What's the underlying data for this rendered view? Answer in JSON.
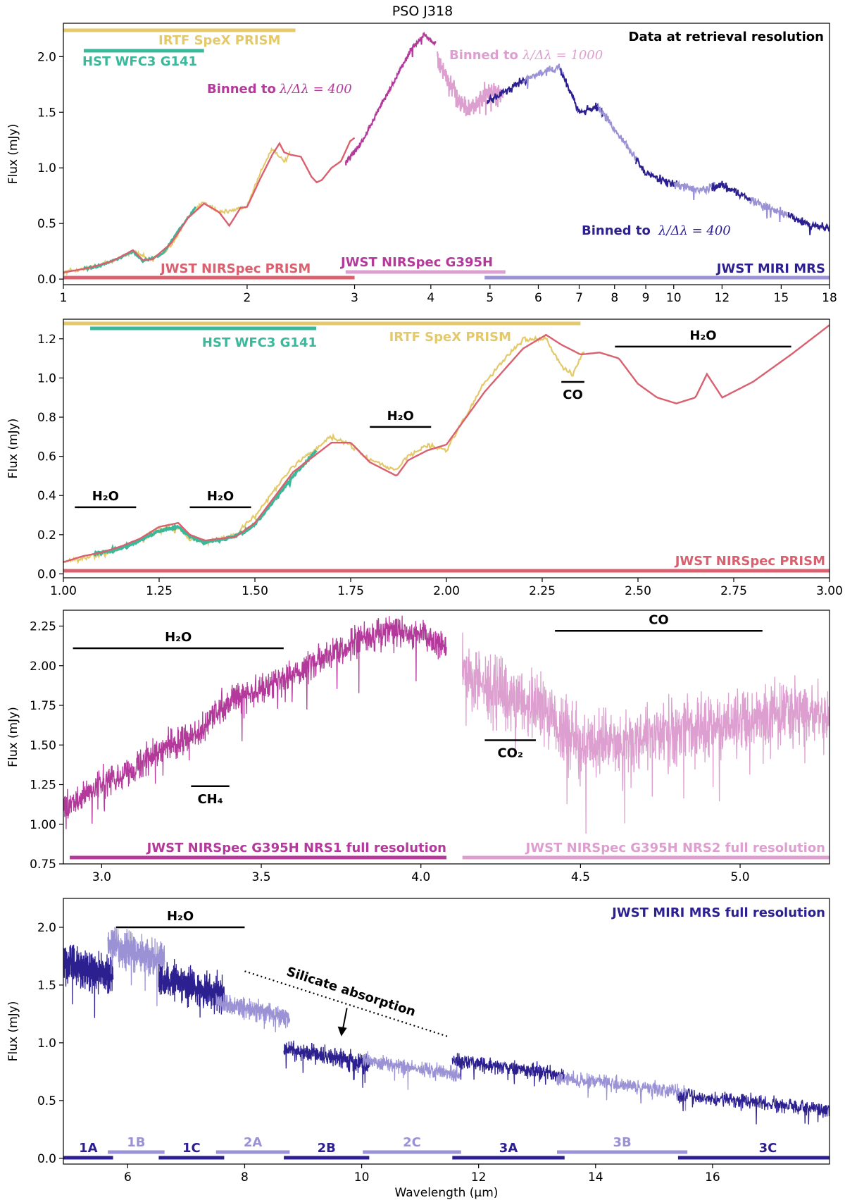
{
  "figure_title": "PSO J318",
  "colors": {
    "nirspec_prism": "#d9606e",
    "irtf_spex": "#e3c96a",
    "hst_wfc3": "#3bb89a",
    "g395h_nrs1": "#b3399a",
    "g395h_nrs2": "#dd9fcf",
    "miri_dark": "#2c1f8f",
    "miri_light": "#9a92d4",
    "black": "#000000"
  },
  "chart_data": [
    {
      "type": "line",
      "panel": "overview",
      "xscale": "log",
      "xlim": [
        1,
        18
      ],
      "ylim": [
        -0.05,
        2.3
      ],
      "ylabel": "Flux (mJy)",
      "xticks": [
        1,
        2,
        3,
        4,
        5,
        6,
        7,
        8,
        9,
        10,
        12,
        15,
        18
      ],
      "xtick_labels": [
        "1",
        "2",
        "3",
        "4",
        "5",
        "6",
        "7",
        "8",
        "9",
        "10",
        "12",
        "15",
        "18"
      ],
      "yticks": [
        0,
        0.5,
        1,
        1.5,
        2
      ],
      "ytick_labels": [
        "0.0",
        "0.5",
        "1.0",
        "1.5",
        "2.0"
      ],
      "legend_title": "Data at retrieval resolution",
      "series": [
        {
          "name": "JWST NIRSpec PRISM",
          "color_key": "nirspec_prism",
          "x": [
            1.0,
            1.05,
            1.1,
            1.2,
            1.25,
            1.3,
            1.35,
            1.4,
            1.5,
            1.6,
            1.7,
            1.8,
            1.87,
            1.95,
            2.0,
            2.1,
            2.2,
            2.26,
            2.3,
            2.35,
            2.45,
            2.55,
            2.6,
            2.65,
            2.75,
            2.85,
            2.95,
            3.0
          ],
          "y": [
            0.06,
            0.08,
            0.1,
            0.16,
            0.21,
            0.26,
            0.17,
            0.18,
            0.32,
            0.55,
            0.68,
            0.6,
            0.48,
            0.64,
            0.65,
            0.9,
            1.12,
            1.22,
            1.14,
            1.12,
            1.1,
            0.92,
            0.87,
            0.89,
            1.0,
            1.06,
            1.24,
            1.27
          ]
        },
        {
          "name": "IRTF SpeX PRISM",
          "color_key": "irtf_spex",
          "x": [
            1.0,
            1.1,
            1.2,
            1.3,
            1.4,
            1.5,
            1.6,
            1.7,
            1.8,
            1.9,
            2.0,
            2.1,
            2.2,
            2.3,
            2.35
          ],
          "y": [
            0.06,
            0.1,
            0.16,
            0.25,
            0.17,
            0.3,
            0.55,
            0.7,
            0.6,
            0.62,
            0.66,
            0.95,
            1.18,
            1.05,
            1.13
          ]
        },
        {
          "name": "HST WFC3 G141",
          "color_key": "hst_wfc3",
          "x": [
            1.08,
            1.15,
            1.25,
            1.3,
            1.35,
            1.45,
            1.55,
            1.65
          ],
          "y": [
            0.09,
            0.12,
            0.2,
            0.25,
            0.16,
            0.22,
            0.45,
            0.65
          ]
        },
        {
          "name": "JWST NIRSpec G395H",
          "color_key": "g395h_nrs1",
          "x": [
            2.9,
            3.1,
            3.3,
            3.5,
            3.7,
            3.9,
            4.05
          ],
          "y": [
            1.05,
            1.25,
            1.55,
            1.8,
            2.05,
            2.2,
            2.12
          ]
        },
        {
          "name": "JWST NIRSpec G395H",
          "color_key": "g395h_nrs2",
          "x": [
            4.1,
            4.2,
            4.4,
            4.6,
            4.8,
            5.0,
            5.2
          ],
          "y": [
            2.0,
            1.85,
            1.65,
            1.5,
            1.6,
            1.7,
            1.65
          ]
        },
        {
          "name": "JWST MIRI MRS",
          "color_key": "miri_dark",
          "x": [
            5.0,
            5.5,
            6.0,
            6.5,
            7.0,
            7.5,
            8.0,
            9.0,
            10.0,
            11.0,
            12.0,
            13.5,
            15.0,
            16.5,
            18.0
          ],
          "y": [
            1.6,
            1.75,
            1.85,
            1.9,
            1.5,
            1.55,
            1.35,
            0.95,
            0.85,
            0.8,
            0.85,
            0.7,
            0.6,
            0.5,
            0.45
          ]
        }
      ],
      "annotations": [
        "IRTF SpeX PRISM",
        "HST WFC3 G141",
        "Data at retrieval resolution",
        "Binned to",
        "λ/Δλ = 400",
        "Binned to",
        "λ/Δλ = 1000",
        "Binned to",
        "λ/Δλ = 400",
        "JWST NIRSpec PRISM",
        "JWST NIRSpec G395H",
        "JWST MIRI MRS"
      ],
      "coverage_bars": [
        {
          "label": "IRTF SpeX PRISM",
          "x": [
            1.0,
            2.4
          ],
          "color_key": "irtf_spex"
        },
        {
          "label": "HST WFC3 G141",
          "x": [
            1.08,
            1.7
          ],
          "color_key": "hst_wfc3"
        },
        {
          "label": "JWST NIRSpec PRISM",
          "x": [
            1.0,
            3.0
          ],
          "color_key": "nirspec_prism"
        },
        {
          "label": "JWST NIRSpec G395H",
          "x": [
            2.9,
            5.3
          ],
          "color_key": "g395h_nrs2"
        },
        {
          "label": "JWST MIRI MRS",
          "x": [
            4.9,
            18.0
          ],
          "color_key": "miri_light"
        }
      ]
    },
    {
      "type": "line",
      "panel": "prism",
      "xlim": [
        1.0,
        3.0
      ],
      "ylim": [
        -0.02,
        1.3
      ],
      "ylabel": "Flux (mJy)",
      "xticks": [
        1.0,
        1.25,
        1.5,
        1.75,
        2.0,
        2.25,
        2.5,
        2.75,
        3.0
      ],
      "xtick_labels": [
        "1.00",
        "1.25",
        "1.50",
        "1.75",
        "2.00",
        "2.25",
        "2.50",
        "2.75",
        "3.00"
      ],
      "yticks": [
        0,
        0.2,
        0.4,
        0.6,
        0.8,
        1.0,
        1.2
      ],
      "ytick_labels": [
        "0.0",
        "0.2",
        "0.4",
        "0.6",
        "0.8",
        "1.0",
        "1.2"
      ],
      "series": [
        {
          "name": "JWST NIRSpec PRISM",
          "color_key": "nirspec_prism",
          "x": [
            1.0,
            1.05,
            1.1,
            1.15,
            1.2,
            1.25,
            1.3,
            1.33,
            1.37,
            1.45,
            1.5,
            1.6,
            1.7,
            1.75,
            1.8,
            1.87,
            1.9,
            1.95,
            2.0,
            2.1,
            2.2,
            2.26,
            2.3,
            2.35,
            2.4,
            2.45,
            2.5,
            2.55,
            2.6,
            2.65,
            2.68,
            2.72,
            2.8,
            2.9,
            3.0
          ],
          "y": [
            0.06,
            0.09,
            0.11,
            0.14,
            0.18,
            0.24,
            0.26,
            0.2,
            0.17,
            0.19,
            0.26,
            0.52,
            0.67,
            0.67,
            0.57,
            0.5,
            0.58,
            0.63,
            0.66,
            0.93,
            1.15,
            1.22,
            1.17,
            1.12,
            1.13,
            1.1,
            0.97,
            0.9,
            0.87,
            0.9,
            1.02,
            0.9,
            0.98,
            1.12,
            1.27
          ]
        },
        {
          "name": "IRTF SpeX PRISM",
          "color_key": "irtf_spex",
          "x": [
            1.0,
            1.05,
            1.1,
            1.15,
            1.2,
            1.25,
            1.3,
            1.33,
            1.37,
            1.45,
            1.5,
            1.6,
            1.7,
            1.75,
            1.8,
            1.87,
            1.9,
            1.95,
            2.0,
            2.1,
            2.2,
            2.26,
            2.3,
            2.33,
            2.36
          ],
          "y": [
            0.06,
            0.08,
            0.1,
            0.13,
            0.17,
            0.23,
            0.24,
            0.18,
            0.16,
            0.2,
            0.3,
            0.55,
            0.7,
            0.66,
            0.58,
            0.53,
            0.6,
            0.66,
            0.63,
            0.98,
            1.2,
            1.2,
            1.06,
            1.02,
            1.14
          ]
        },
        {
          "name": "HST WFC3 G141",
          "color_key": "hst_wfc3",
          "x": [
            1.08,
            1.15,
            1.2,
            1.25,
            1.3,
            1.33,
            1.37,
            1.45,
            1.5,
            1.6,
            1.66
          ],
          "y": [
            0.1,
            0.13,
            0.17,
            0.22,
            0.24,
            0.19,
            0.16,
            0.19,
            0.25,
            0.5,
            0.63
          ]
        }
      ],
      "coverage_bars": [
        {
          "label": "IRTF SpeX PRISM",
          "x": [
            1.0,
            2.35
          ],
          "color_key": "irtf_spex"
        },
        {
          "label": "HST WFC3 G141",
          "x": [
            1.07,
            1.66
          ],
          "color_key": "hst_wfc3"
        },
        {
          "label": "JWST NIRSpec PRISM",
          "x": [
            1.0,
            3.0
          ],
          "color_key": "nirspec_prism"
        }
      ],
      "features": [
        {
          "label": "H₂O",
          "x": [
            1.03,
            1.19
          ],
          "y": 0.34
        },
        {
          "label": "H₂O",
          "x": [
            1.33,
            1.49
          ],
          "y": 0.34
        },
        {
          "label": "H₂O",
          "x": [
            1.8,
            1.96
          ],
          "y": 0.75
        },
        {
          "label": "CO",
          "x": [
            2.3,
            2.36
          ],
          "y": 0.98
        },
        {
          "label": "H₂O",
          "x": [
            2.44,
            2.9
          ],
          "y": 1.16
        }
      ]
    },
    {
      "type": "line",
      "panel": "g395h",
      "xlim": [
        2.88,
        5.28
      ],
      "ylim": [
        0.75,
        2.35
      ],
      "ylabel": "Flux (mJy)",
      "xticks": [
        3.0,
        3.5,
        4.0,
        4.5,
        5.0
      ],
      "xtick_labels": [
        "3.0",
        "3.5",
        "4.0",
        "4.5",
        "5.0"
      ],
      "yticks": [
        0.75,
        1.0,
        1.25,
        1.5,
        1.75,
        2.0,
        2.25
      ],
      "ytick_labels": [
        "0.75",
        "1.00",
        "1.25",
        "1.50",
        "1.75",
        "2.00",
        "2.25"
      ],
      "series": [
        {
          "name": "JWST NIRSpec G395H NRS1 full resolution",
          "color_key": "g395h_nrs1",
          "x": [
            2.88,
            3.0,
            3.1,
            3.2,
            3.3,
            3.35,
            3.4,
            3.5,
            3.6,
            3.7,
            3.8,
            3.9,
            4.0,
            4.08
          ],
          "y": [
            1.1,
            1.25,
            1.35,
            1.5,
            1.55,
            1.7,
            1.78,
            1.85,
            1.95,
            2.05,
            2.15,
            2.22,
            2.2,
            2.12
          ],
          "noise": 0.1
        },
        {
          "name": "JWST NIRSpec G395H NRS2 full resolution",
          "color_key": "g395h_nrs2",
          "x": [
            4.12,
            4.2,
            4.3,
            4.4,
            4.5,
            4.6,
            4.7,
            4.8,
            4.9,
            5.0,
            5.1,
            5.2,
            5.28
          ],
          "y": [
            2.0,
            1.85,
            1.8,
            1.7,
            1.5,
            1.5,
            1.55,
            1.6,
            1.6,
            1.65,
            1.7,
            1.7,
            1.72
          ],
          "noise": 0.22
        }
      ],
      "coverage_bars": [
        {
          "label": "JWST NIRSpec G395H NRS1 full resolution",
          "x": [
            2.9,
            4.08
          ],
          "color_key": "g395h_nrs1"
        },
        {
          "label": "JWST NIRSpec G395H NRS2 full resolution",
          "x": [
            4.13,
            5.28
          ],
          "color_key": "g395h_nrs2"
        }
      ],
      "features": [
        {
          "label": "H₂O",
          "x": [
            2.91,
            3.57
          ],
          "y": 2.11
        },
        {
          "label": "CH₄",
          "x": [
            3.28,
            3.4
          ],
          "y": 1.24
        },
        {
          "label": "CO₂",
          "x": [
            4.2,
            4.36
          ],
          "y": 1.53
        },
        {
          "label": "CO",
          "x": [
            4.42,
            5.07
          ],
          "y": 2.22
        }
      ]
    },
    {
      "type": "line",
      "panel": "miri",
      "xlim": [
        4.9,
        18.0
      ],
      "ylim": [
        -0.05,
        2.25
      ],
      "xlabel": "Wavelength (μm)",
      "ylabel": "Flux (mJy)",
      "xticks": [
        6,
        8,
        10,
        12,
        14,
        16
      ],
      "xtick_labels": [
        "6",
        "8",
        "10",
        "12",
        "14",
        "16"
      ],
      "yticks": [
        0,
        0.5,
        1,
        1.5,
        2
      ],
      "ytick_labels": [
        "0.0",
        "0.5",
        "1.0",
        "1.5",
        "2.0"
      ],
      "legend_title": "JWST MIRI MRS full resolution",
      "channels": [
        {
          "label": "1A",
          "x": [
            4.9,
            5.75
          ],
          "color_key": "miri_dark",
          "level": 1.65
        },
        {
          "label": "1B",
          "x": [
            5.66,
            6.63
          ],
          "color_key": "miri_light",
          "level": 1.8
        },
        {
          "label": "1C",
          "x": [
            6.53,
            7.65
          ],
          "color_key": "miri_dark",
          "level": 1.5
        },
        {
          "label": "2A",
          "x": [
            7.51,
            8.77
          ],
          "color_key": "miri_light",
          "level": 1.3
        },
        {
          "label": "2B",
          "x": [
            8.67,
            10.13
          ],
          "color_key": "miri_dark",
          "level": 0.9
        },
        {
          "label": "2C",
          "x": [
            10.02,
            11.7
          ],
          "color_key": "miri_light",
          "level": 0.8
        },
        {
          "label": "3A",
          "x": [
            11.55,
            13.47
          ],
          "color_key": "miri_dark",
          "level": 0.8
        },
        {
          "label": "3B",
          "x": [
            13.34,
            15.57
          ],
          "color_key": "miri_light",
          "level": 0.65
        },
        {
          "label": "3C",
          "x": [
            15.41,
            18.0
          ],
          "color_key": "miri_dark",
          "level": 0.5
        }
      ],
      "features": [
        {
          "label": "H₂O",
          "x": [
            5.8,
            8.0
          ],
          "y": 2.0
        }
      ],
      "annotations": [
        "Silicate absorption"
      ]
    }
  ]
}
